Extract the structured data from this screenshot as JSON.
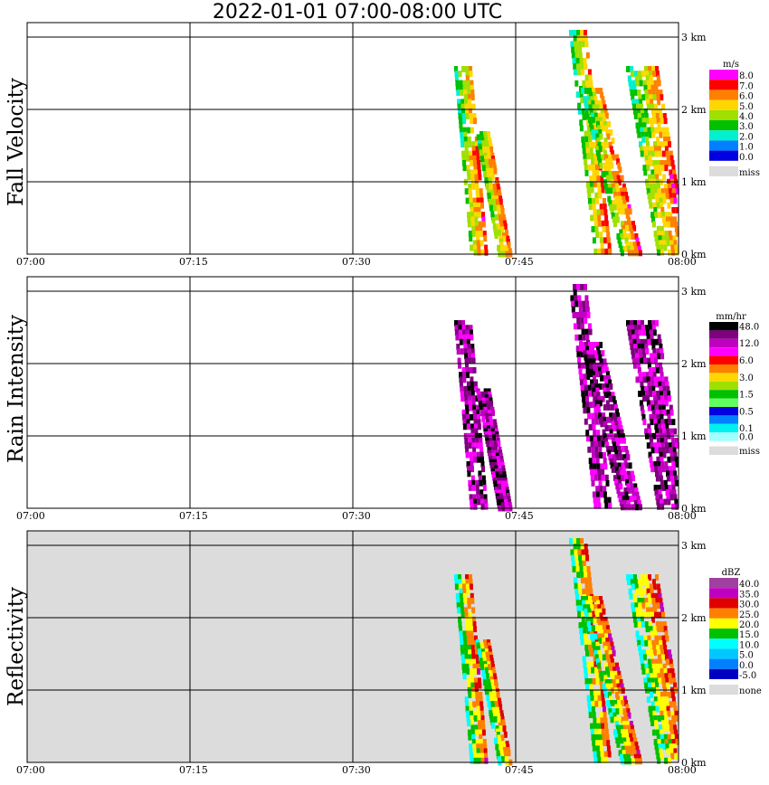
{
  "title": "2022-01-01   07:00-08:00 UTC",
  "chart_data": [
    {
      "type": "heatmap",
      "panel_label": "Fall Velocity",
      "unit": "m/s",
      "x_tick_labels": [
        "07:00",
        "07:15",
        "07:30",
        "07:45",
        "08:00"
      ],
      "y_tick_labels": [
        "0 km",
        "1 km",
        "2 km",
        "3 km"
      ],
      "xlim": [
        "07:00",
        "08:00"
      ],
      "ylim_km": [
        0,
        3.2
      ],
      "background": "#ffffff",
      "legend": [
        {
          "label": "8.0",
          "color": "#ff00ff"
        },
        {
          "label": "7.0",
          "color": "#ff0000"
        },
        {
          "label": "6.0",
          "color": "#ff8000"
        },
        {
          "label": "5.0",
          "color": "#ffd700"
        },
        {
          "label": "4.0",
          "color": "#a0e000"
        },
        {
          "label": "3.0",
          "color": "#00c000"
        },
        {
          "label": "2.0",
          "color": "#00f0d0"
        },
        {
          "label": "1.0",
          "color": "#0080ff"
        },
        {
          "label": "0.0",
          "color": "#0000e0"
        },
        {
          "label": "miss",
          "color": "#dcdcdc"
        }
      ]
    },
    {
      "type": "heatmap",
      "panel_label": "Rain Intensity",
      "unit": "mm/hr",
      "x_tick_labels": [
        "07:00",
        "07:15",
        "07:30",
        "07:45",
        "08:00"
      ],
      "y_tick_labels": [
        "0 km",
        "1 km",
        "2 km",
        "3 km"
      ],
      "xlim": [
        "07:00",
        "08:00"
      ],
      "ylim_km": [
        0,
        3.2
      ],
      "background": "#ffffff",
      "legend": [
        {
          "label": "48.0",
          "color": "#000000"
        },
        {
          "label": "",
          "color": "#800080"
        },
        {
          "label": "12.0",
          "color": "#c000c0"
        },
        {
          "label": "",
          "color": "#ff00ff"
        },
        {
          "label": "6.0",
          "color": "#ff0000"
        },
        {
          "label": "",
          "color": "#ff8000"
        },
        {
          "label": "3.0",
          "color": "#ffd700"
        },
        {
          "label": "",
          "color": "#a0e000"
        },
        {
          "label": "1.5",
          "color": "#00c000"
        },
        {
          "label": "",
          "color": "#60ff60"
        },
        {
          "label": "0.5",
          "color": "#0000e0"
        },
        {
          "label": "",
          "color": "#0080ff"
        },
        {
          "label": "0.1",
          "color": "#00f0f0"
        },
        {
          "label": "0.0",
          "color": "#a0ffff"
        },
        {
          "label": "miss",
          "color": "#dcdcdc"
        }
      ]
    },
    {
      "type": "heatmap",
      "panel_label": "Reflectivity",
      "unit": "dBZ",
      "x_tick_labels": [
        "07:00",
        "07:15",
        "07:30",
        "07:45",
        "08:00"
      ],
      "y_tick_labels": [
        "0 km",
        "1 km",
        "2 km",
        "3 km"
      ],
      "xlim": [
        "07:00",
        "08:00"
      ],
      "ylim_km": [
        0,
        3.2
      ],
      "background": "#dcdcdc",
      "legend": [
        {
          "label": "40.0",
          "color": "#a040a0"
        },
        {
          "label": "35.0",
          "color": "#c000c0"
        },
        {
          "label": "30.0",
          "color": "#e00000"
        },
        {
          "label": "25.0",
          "color": "#ff8000"
        },
        {
          "label": "20.0",
          "color": "#ffff00"
        },
        {
          "label": "15.0",
          "color": "#00c000"
        },
        {
          "label": "10.0",
          "color": "#00ffff"
        },
        {
          "label": "5.0",
          "color": "#00c8ff"
        },
        {
          "label": "0.0",
          "color": "#0080ff"
        },
        {
          "label": "-5.0",
          "color": "#0000c0"
        },
        {
          "label": "none",
          "color": "#dcdcdc"
        }
      ]
    }
  ]
}
